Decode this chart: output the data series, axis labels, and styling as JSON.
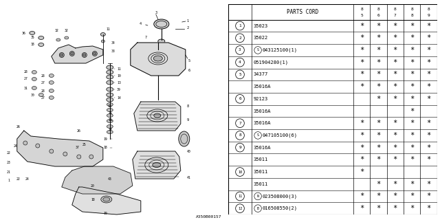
{
  "diagram_id": "A350B00157",
  "bg_color": "#ffffff",
  "line_color": "#000000",
  "text_color": "#000000",
  "rows": [
    {
      "num": "1",
      "circle": true,
      "prefix": "",
      "code": "35023",
      "suffix": "",
      "marks": [
        1,
        1,
        1,
        1,
        1
      ]
    },
    {
      "num": "2",
      "circle": true,
      "prefix": "",
      "code": "35022",
      "suffix": "",
      "marks": [
        1,
        1,
        1,
        1,
        1
      ]
    },
    {
      "num": "3",
      "circle": true,
      "prefix": "S",
      "code": "043125100",
      "suffix": "(1)",
      "marks": [
        1,
        1,
        1,
        1,
        1
      ]
    },
    {
      "num": "4",
      "circle": true,
      "prefix": "",
      "code": "051904280",
      "suffix": "(1)",
      "marks": [
        1,
        1,
        1,
        1,
        1
      ]
    },
    {
      "num": "5",
      "circle": true,
      "prefix": "",
      "code": "34377",
      "suffix": "",
      "marks": [
        1,
        1,
        1,
        1,
        1
      ]
    },
    {
      "num": "",
      "circle": false,
      "prefix": "",
      "code": "35016A",
      "suffix": "",
      "marks": [
        1,
        1,
        1,
        1,
        1
      ]
    },
    {
      "num": "6",
      "circle": true,
      "prefix": "",
      "code": "92123",
      "suffix": "",
      "marks": [
        0,
        1,
        1,
        1,
        1
      ]
    },
    {
      "num": "",
      "circle": false,
      "prefix": "",
      "code": "35016A",
      "suffix": "",
      "marks": [
        0,
        0,
        0,
        1,
        0
      ]
    },
    {
      "num": "7",
      "circle": true,
      "prefix": "",
      "code": "35016A",
      "suffix": "",
      "marks": [
        1,
        1,
        1,
        1,
        1
      ]
    },
    {
      "num": "8",
      "circle": true,
      "prefix": "S",
      "code": "047105100",
      "suffix": "(6)",
      "marks": [
        1,
        1,
        1,
        1,
        1
      ]
    },
    {
      "num": "9",
      "circle": true,
      "prefix": "",
      "code": "35016A",
      "suffix": "",
      "marks": [
        1,
        1,
        1,
        1,
        1
      ]
    },
    {
      "num": "",
      "circle": false,
      "prefix": "",
      "code": "35011",
      "suffix": "",
      "marks": [
        1,
        1,
        1,
        1,
        1
      ]
    },
    {
      "num": "10",
      "circle": true,
      "prefix": "",
      "code": "35011",
      "suffix": "",
      "marks": [
        1,
        0,
        0,
        0,
        0
      ]
    },
    {
      "num": "",
      "circle": false,
      "prefix": "",
      "code": "35011",
      "suffix": "",
      "marks": [
        0,
        1,
        1,
        1,
        1
      ]
    },
    {
      "num": "11",
      "circle": true,
      "prefix": "N",
      "code": "023508000",
      "suffix": "(3)",
      "marks": [
        1,
        1,
        1,
        1,
        1
      ]
    },
    {
      "num": "12",
      "circle": true,
      "prefix": "B",
      "code": "016508550",
      "suffix": "(2)",
      "marks": [
        1,
        1,
        1,
        1,
        1
      ]
    }
  ],
  "callout_labels": [
    "36",
    "38",
    "35",
    "32",
    "32",
    "11",
    "34",
    "33",
    "7",
    "4",
    "3",
    "1",
    "2",
    "28",
    "27",
    "31",
    "30",
    "12",
    "26",
    "29",
    "28",
    "27",
    "11",
    "10",
    "13",
    "39",
    "14",
    "42",
    "15",
    "16",
    "17",
    "19",
    "18",
    "43",
    "20",
    "22",
    "24",
    "23",
    "22",
    "21",
    "1",
    "26",
    "25",
    "37",
    "5",
    "6",
    "8",
    "9",
    "40",
    "41"
  ]
}
